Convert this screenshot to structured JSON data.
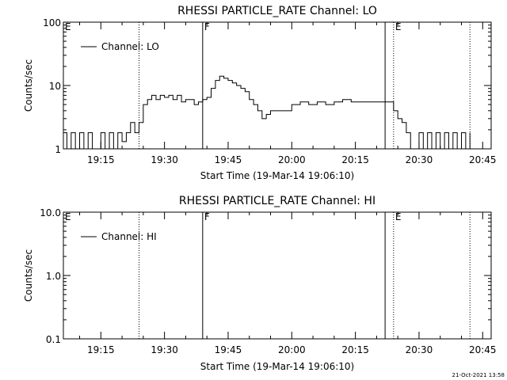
{
  "chart_data": [
    {
      "type": "line",
      "title": "RHESSI PARTICLE_RATE Channel: LO",
      "xlabel": "Start Time (19-Mar-14 19:06:10)",
      "ylabel": "Counts/sec",
      "yscale": "log",
      "ylim": [
        1,
        100
      ],
      "xlim": [
        "19:06:10",
        "20:47:00"
      ],
      "x_ticks": [
        "19:15",
        "19:30",
        "19:45",
        "20:00",
        "20:15",
        "20:30",
        "20:45"
      ],
      "y_ticks": [
        "1",
        "10",
        "100"
      ],
      "legend": "Channel: LO",
      "legend_position": "top-left",
      "markers": [
        {
          "time": "19:06:10",
          "label": "E",
          "style": "none"
        },
        {
          "time": "19:24:00",
          "label": "",
          "style": "dotted"
        },
        {
          "time": "19:39:00",
          "label": "F",
          "style": "solid"
        },
        {
          "time": "20:22:00",
          "label": "",
          "style": "solid"
        },
        {
          "time": "20:24:00",
          "label": "E",
          "style": "dotted"
        },
        {
          "time": "20:42:00",
          "label": "",
          "style": "dotted"
        }
      ],
      "series": [
        {
          "name": "Channel: LO",
          "x": [
            "19:06:10",
            "19:07:00",
            "19:08:00",
            "19:09:00",
            "19:10:00",
            "19:11:00",
            "19:12:00",
            "19:13:00",
            "19:14:00",
            "19:15:00",
            "19:16:00",
            "19:17:00",
            "19:18:00",
            "19:19:00",
            "19:20:00",
            "19:21:00",
            "19:22:00",
            "19:23:00",
            "19:24:00",
            "19:25:00",
            "19:26:00",
            "19:27:00",
            "19:28:00",
            "19:29:00",
            "19:30:00",
            "19:31:00",
            "19:32:00",
            "19:33:00",
            "19:34:00",
            "19:35:00",
            "19:36:00",
            "19:37:00",
            "19:38:00",
            "19:39:00",
            "19:40:00",
            "19:41:00",
            "19:42:00",
            "19:43:00",
            "19:44:00",
            "19:45:00",
            "19:46:00",
            "19:47:00",
            "19:48:00",
            "19:49:00",
            "19:50:00",
            "19:51:00",
            "19:52:00",
            "19:53:00",
            "19:54:00",
            "19:55:00",
            "19:56:00",
            "19:57:00",
            "19:58:00",
            "19:59:00",
            "20:00:00",
            "20:02:00",
            "20:04:00",
            "20:06:00",
            "20:08:00",
            "20:10:00",
            "20:12:00",
            "20:14:00",
            "20:16:00",
            "20:18:00",
            "20:20:00",
            "20:22:00",
            "20:23:00",
            "20:24:00",
            "20:25:00",
            "20:26:00",
            "20:27:00",
            "20:28:00",
            "20:29:00",
            "20:30:00",
            "20:31:00",
            "20:32:00",
            "20:33:00",
            "20:34:00",
            "20:35:00",
            "20:36:00",
            "20:37:00",
            "20:38:00",
            "20:39:00",
            "20:40:00",
            "20:41:00",
            "20:42:00"
          ],
          "y": [
            1.8,
            1,
            1.8,
            1,
            1.8,
            1,
            1.8,
            1,
            1,
            1.8,
            1,
            1.8,
            1,
            1.8,
            1.3,
            1.8,
            2.6,
            1.8,
            2.6,
            5,
            6,
            7,
            6,
            7,
            6.5,
            7,
            6,
            7,
            5.5,
            6,
            6,
            5,
            5.5,
            6,
            6.5,
            9,
            12,
            14,
            13,
            12,
            11,
            10,
            9,
            8,
            6,
            5,
            4,
            3,
            3.5,
            4,
            4,
            4,
            4,
            4,
            5,
            5.5,
            5,
            5.5,
            5,
            5.5,
            6,
            5.5,
            5.5,
            5.5,
            5.5,
            5.5,
            5.5,
            4,
            3,
            2.6,
            1.8,
            1,
            1,
            1.8,
            1,
            1.8,
            1,
            1.8,
            1,
            1.8,
            1,
            1.8,
            1,
            1.8,
            1,
            1.8
          ]
        }
      ]
    },
    {
      "type": "line",
      "title": "RHESSI PARTICLE_RATE Channel: HI",
      "xlabel": "Start Time (19-Mar-14 19:06:10)",
      "ylabel": "Counts/sec",
      "yscale": "log",
      "ylim": [
        0.1,
        10
      ],
      "xlim": [
        "19:06:10",
        "20:47:00"
      ],
      "x_ticks": [
        "19:15",
        "19:30",
        "19:45",
        "20:00",
        "20:15",
        "20:30",
        "20:45"
      ],
      "y_ticks": [
        "0.1",
        "1.0",
        "10.0"
      ],
      "legend": "Channel: HI",
      "legend_position": "top-left",
      "markers": [
        {
          "time": "19:06:10",
          "label": "E",
          "style": "none"
        },
        {
          "time": "19:24:00",
          "label": "",
          "style": "dotted"
        },
        {
          "time": "19:39:00",
          "label": "F",
          "style": "solid"
        },
        {
          "time": "20:22:00",
          "label": "",
          "style": "solid"
        },
        {
          "time": "20:24:00",
          "label": "E",
          "style": "dotted"
        },
        {
          "time": "20:42:00",
          "label": "",
          "style": "dotted"
        }
      ],
      "series": [
        {
          "name": "Channel: HI",
          "x": [],
          "y": []
        }
      ]
    }
  ],
  "footer": {
    "timestamp": "21-Oct-2021 13:58"
  }
}
